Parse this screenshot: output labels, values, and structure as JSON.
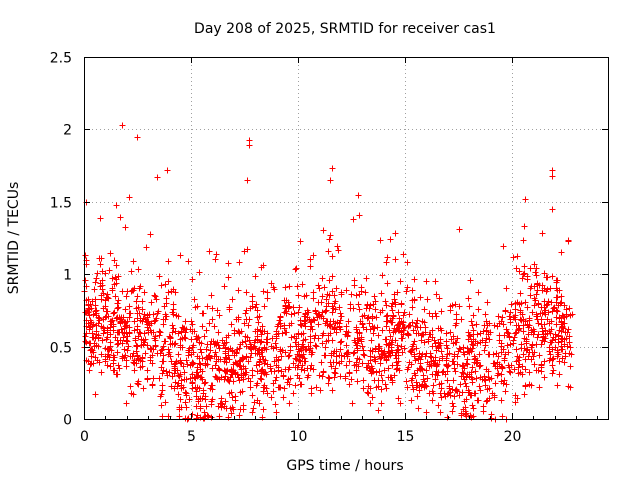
{
  "chart_data": {
    "type": "scatter",
    "title": "Day 208 of 2025, SRMTID for receiver cas1",
    "xlabel": "GPS time / hours",
    "ylabel": "SRMTID / TECUs",
    "xlim": [
      0,
      24.5
    ],
    "ylim": [
      0,
      2.5
    ],
    "grid": true,
    "marker": "+",
    "marker_color": "#ff0000",
    "x_ticks": [
      {
        "value": 0,
        "label": "0"
      },
      {
        "value": 5,
        "label": "5"
      },
      {
        "value": 10,
        "label": "10"
      },
      {
        "value": 15,
        "label": "15"
      },
      {
        "value": 20,
        "label": "20"
      }
    ],
    "y_ticks": [
      {
        "value": 0,
        "label": "0"
      },
      {
        "value": 0.5,
        "label": "0.5"
      },
      {
        "value": 1,
        "label": "1"
      },
      {
        "value": 1.5,
        "label": "1.5"
      },
      {
        "value": 2,
        "label": "2"
      },
      {
        "value": 2.5,
        "label": "2.5"
      }
    ],
    "point_count": 2200,
    "profile_hours": [
      0,
      2,
      4,
      5,
      7,
      9,
      11,
      13,
      15,
      17,
      19,
      21,
      23
    ],
    "profile_median": [
      0.65,
      0.6,
      0.5,
      0.3,
      0.4,
      0.45,
      0.6,
      0.5,
      0.55,
      0.35,
      0.35,
      0.65,
      0.55
    ],
    "outliers": [
      {
        "x": 1.8,
        "y": 2.03
      },
      {
        "x": 2.5,
        "y": 1.95
      },
      {
        "x": 7.7,
        "y": 1.93
      },
      {
        "x": 7.7,
        "y": 1.89
      },
      {
        "x": 3.9,
        "y": 1.72
      },
      {
        "x": 3.4,
        "y": 1.67
      },
      {
        "x": 7.6,
        "y": 1.65
      },
      {
        "x": 11.6,
        "y": 1.73
      },
      {
        "x": 11.5,
        "y": 1.65
      },
      {
        "x": 12.8,
        "y": 1.55
      },
      {
        "x": 21.9,
        "y": 1.72
      },
      {
        "x": 21.9,
        "y": 1.68
      },
      {
        "x": 21.9,
        "y": 1.45
      },
      {
        "x": 20.6,
        "y": 1.52
      },
      {
        "x": 0.1,
        "y": 1.5
      },
      {
        "x": 2.1,
        "y": 1.53
      },
      {
        "x": 1.5,
        "y": 1.48
      },
      {
        "x": 0.1,
        "y": 1.1
      }
    ]
  }
}
